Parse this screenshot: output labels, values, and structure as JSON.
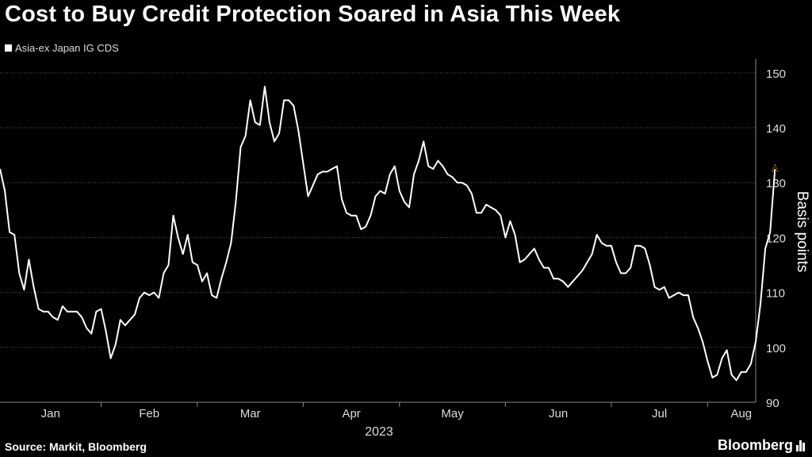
{
  "header": {
    "title": "Cost to Buy Credit Protection Soared in Asia This Week"
  },
  "legend": {
    "label": "Asia-ex Japan IG CDS"
  },
  "footer": {
    "source": "Source: Markit, Bloomberg",
    "brand": "Bloomberg"
  },
  "colors": {
    "background": "#000000",
    "line": "#ffffff",
    "grid": "#555555",
    "marker": "#f5a623"
  },
  "chart_data": {
    "type": "line",
    "ylabel": "Basis points",
    "year_label": "2023",
    "ylim": [
      90,
      152
    ],
    "yticks": [
      90,
      100,
      110,
      120,
      130,
      140,
      150
    ],
    "x_range": [
      0,
      157
    ],
    "months": [
      {
        "label": "Jan",
        "start": 0
      },
      {
        "label": "Feb",
        "start": 21
      },
      {
        "label": "Mar",
        "start": 41
      },
      {
        "label": "Apr",
        "start": 63
      },
      {
        "label": "May",
        "start": 83
      },
      {
        "label": "Jun",
        "start": 105
      },
      {
        "label": "Jul",
        "start": 127
      },
      {
        "label": "Aug",
        "start": 147
      }
    ],
    "grid": true,
    "legend_position": "top-left",
    "series": [
      {
        "name": "Asia-ex Japan IG CDS",
        "values": [
          132.5,
          128.5,
          121,
          120.5,
          113.5,
          110.5,
          116,
          111,
          107,
          106.5,
          106.5,
          105.5,
          105,
          107.5,
          106.5,
          106.5,
          106.5,
          105.5,
          103.5,
          102.5,
          106.5,
          107,
          103,
          98,
          100.5,
          105,
          104,
          105,
          106,
          109,
          110,
          109.5,
          110,
          109,
          113.5,
          115,
          124,
          120,
          117,
          120.5,
          115.5,
          115,
          112,
          113.5,
          109.5,
          109,
          112.5,
          115.5,
          119,
          126.5,
          136.5,
          138.5,
          145,
          141,
          140.5,
          147.5,
          141,
          137.5,
          139,
          145,
          145,
          144,
          139.5,
          133.5,
          127.5,
          129.5,
          131.5,
          132,
          132,
          132.5,
          133,
          127,
          124.5,
          124,
          124,
          121.5,
          122,
          124,
          127.5,
          128.5,
          128,
          131.5,
          133,
          128.5,
          126.5,
          125.5,
          131.5,
          134,
          137.5,
          133,
          132.5,
          134,
          133,
          131.5,
          131,
          130,
          130,
          129.5,
          128,
          124.5,
          124.5,
          126,
          125.5,
          125,
          124,
          120,
          123,
          120.5,
          115.5,
          116,
          117,
          118,
          116,
          114.5,
          114.5,
          112.5,
          112.5,
          112,
          111,
          112,
          113,
          114,
          115.5,
          117,
          120.5,
          119,
          118.5,
          118.5,
          115.5,
          113.5,
          113.5,
          114.5,
          118.5,
          118.5,
          118,
          115,
          111,
          110.5,
          111,
          109,
          109.5,
          110,
          109.5,
          109.5,
          105.5,
          103.5,
          101,
          97.5,
          94.5,
          95,
          98,
          99.5,
          95,
          94,
          95.5,
          95.5,
          97,
          101,
          108,
          118,
          121,
          132.5
        ]
      }
    ]
  }
}
